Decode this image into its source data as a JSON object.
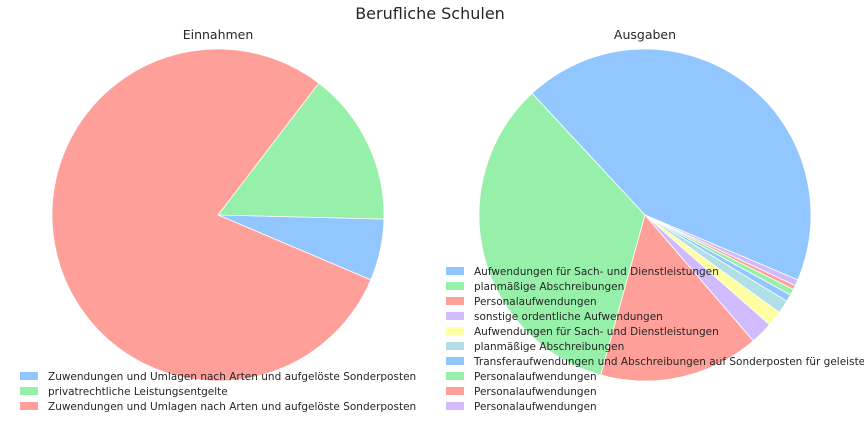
{
  "chart_data": {
    "title": "Berufliche Schulen",
    "charts": [
      {
        "type": "pie",
        "title": "Einnahmen",
        "legend": "bottom-left",
        "slices": [
          {
            "label": "Zuwendungen und Umlagen nach Arten und aufgelöste Sonderposten",
            "value": 6.0,
            "color": "#92c6ff"
          },
          {
            "label": "privatrechtliche Leistungsentgelte",
            "value": 15.0,
            "color": "#97f0aa"
          },
          {
            "label": "Zuwendungen und Umlagen nach Arten und aufgelöste Sonderposten",
            "value": 79.0,
            "color": "#ff9f9a"
          }
        ]
      },
      {
        "type": "pie",
        "title": "Ausgaben",
        "legend": "bottom-right",
        "slices": [
          {
            "label": "Aufwendungen für Sach- und Dienstleistungen",
            "value": 43.3,
            "color": "#92c6ff"
          },
          {
            "label": "planmäßige Abschreibungen",
            "value": 33.8,
            "color": "#97f0aa"
          },
          {
            "label": "Personalaufwendungen",
            "value": 15.6,
            "color": "#ff9f9a"
          },
          {
            "label": "sonstige ordentliche Aufwendungen",
            "value": 2.2,
            "color": "#d0bbff"
          },
          {
            "label": "Aufwendungen für Sach- und Dienstleistungen",
            "value": 1.5,
            "color": "#fffea3"
          },
          {
            "label": "planmäßige Abschreibungen",
            "value": 1.3,
            "color": "#b0e0e6"
          },
          {
            "label": "Transferaufwendungen und Abschreibungen auf Sonderposten für geleistete Investitionszuschüsse",
            "value": 0.7,
            "color": "#92c6ff"
          },
          {
            "label": "Personalaufwendungen",
            "value": 0.6,
            "color": "#97f0aa"
          },
          {
            "label": "Personalaufwendungen",
            "value": 0.4,
            "color": "#ff9f9a"
          },
          {
            "label": "Personalaufwendungen",
            "value": 0.6,
            "color": "#d0bbff"
          }
        ]
      }
    ]
  }
}
